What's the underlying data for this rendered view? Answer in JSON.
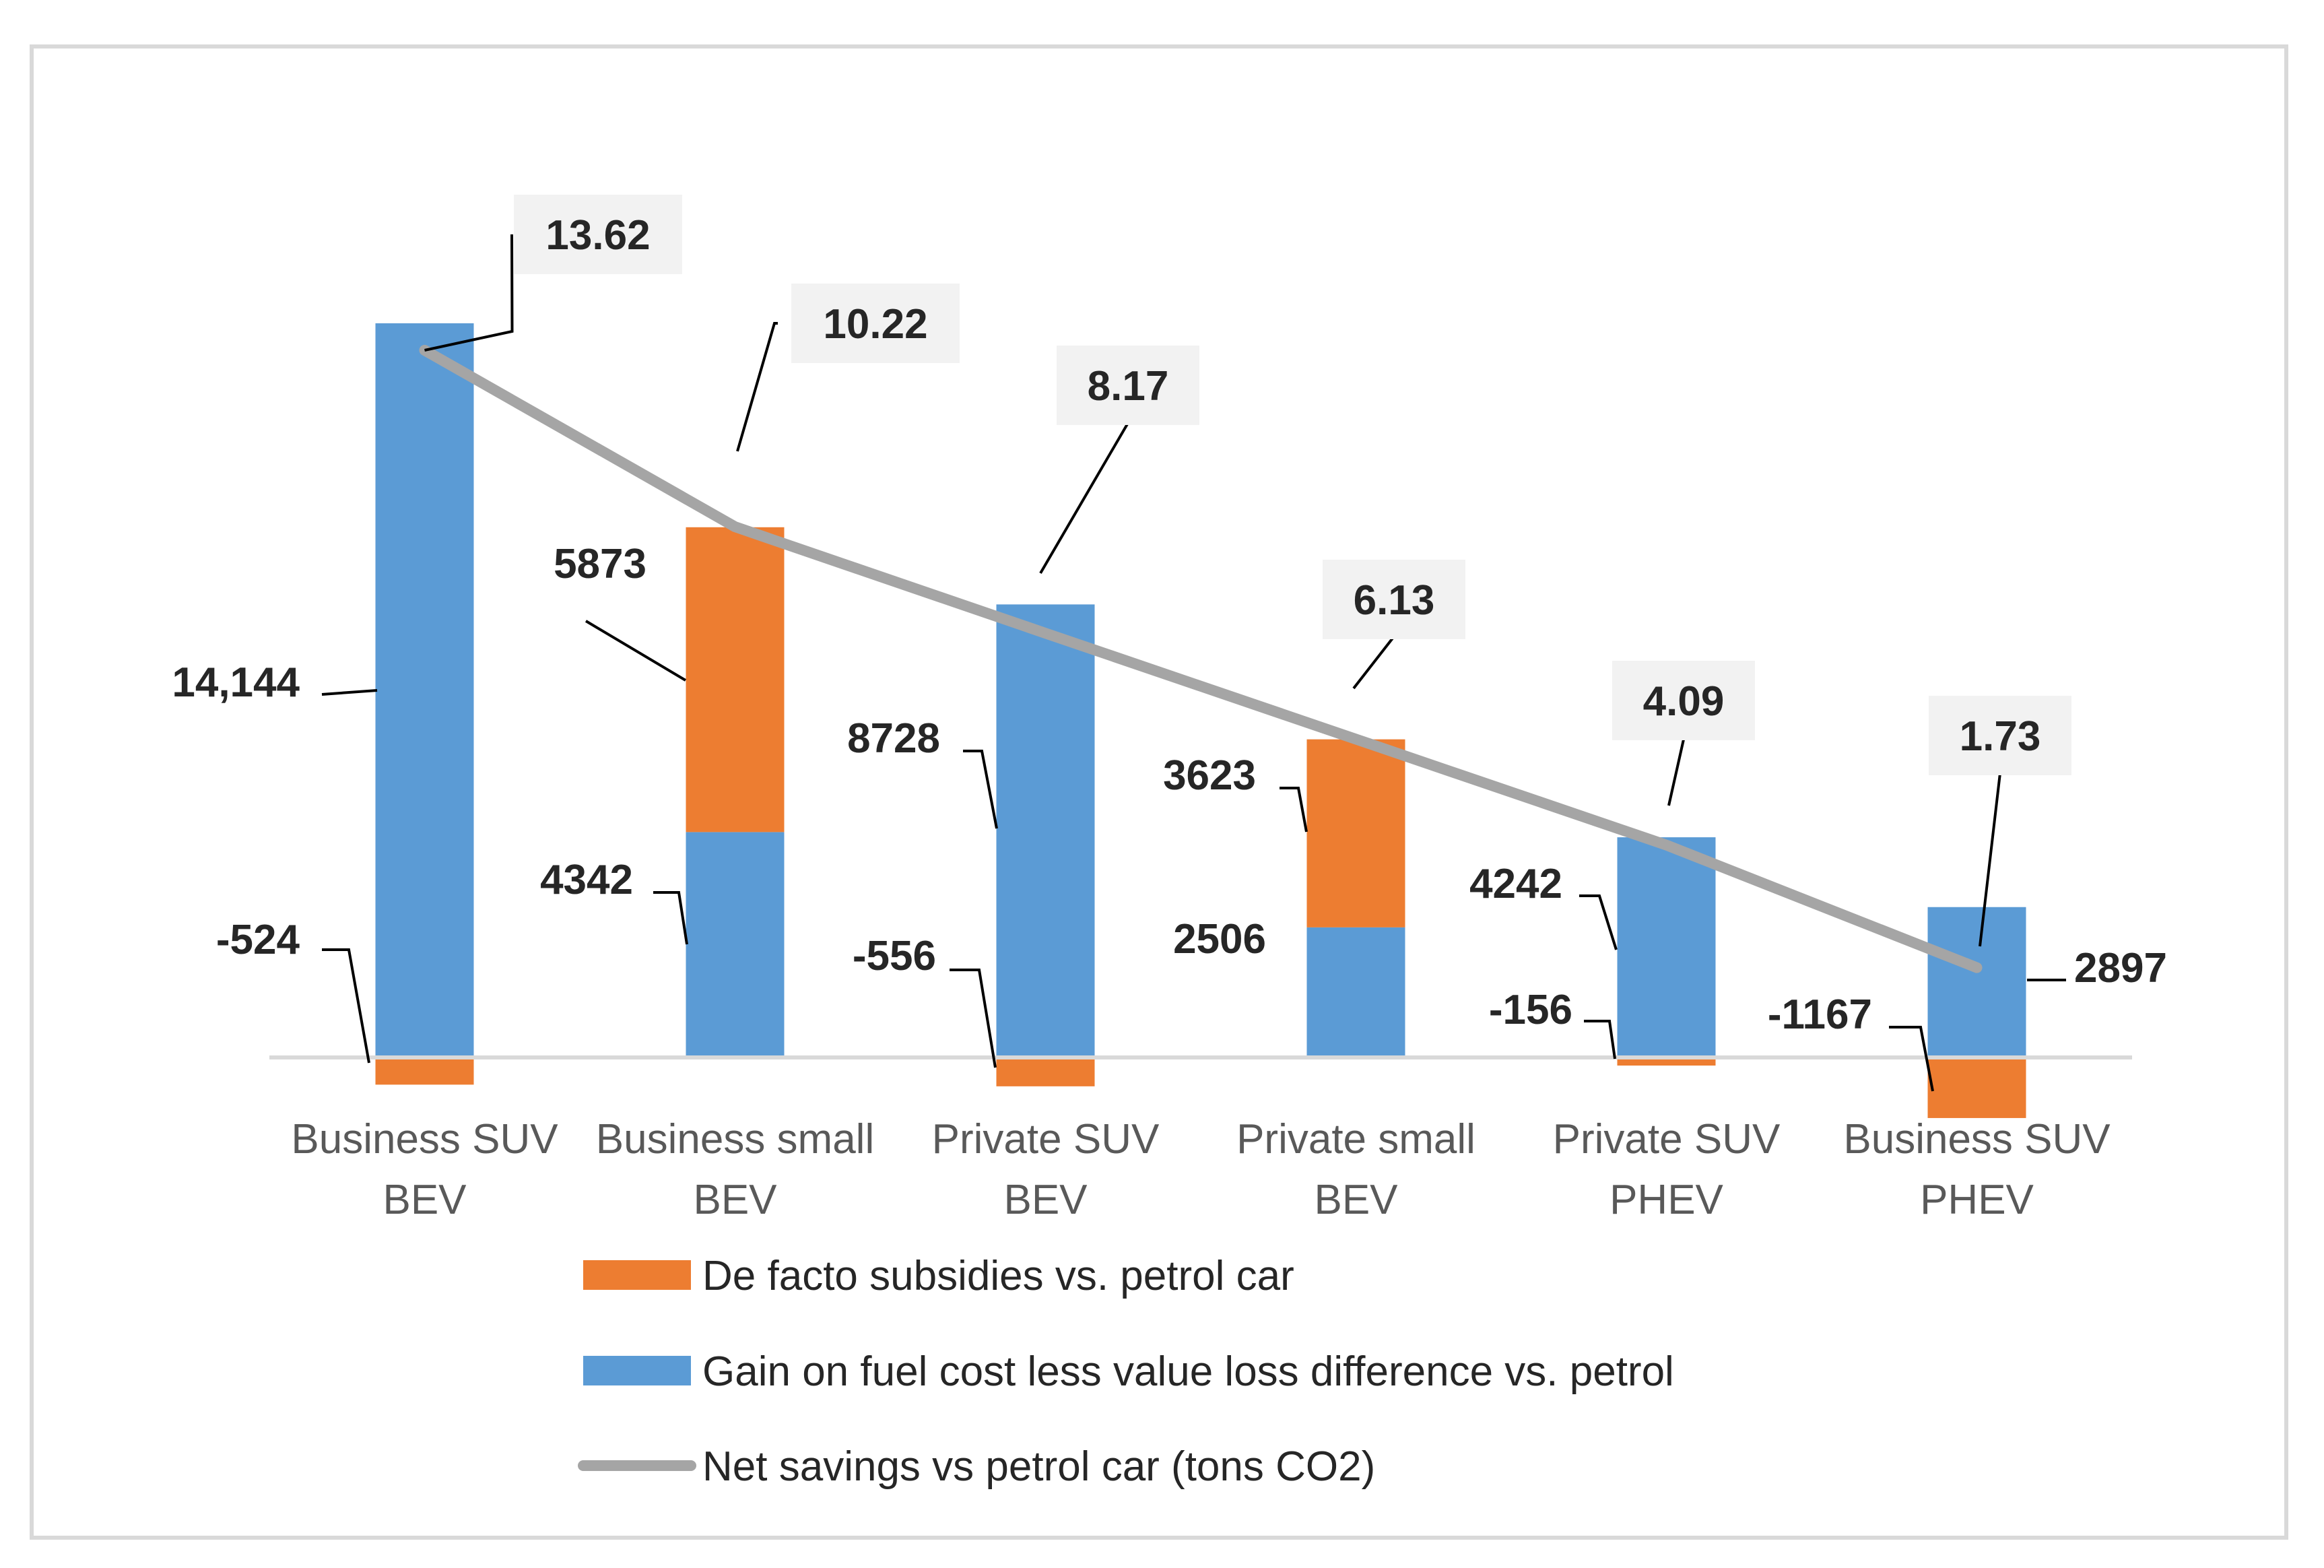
{
  "chart_data": {
    "type": "bar",
    "stacked": true,
    "categories": [
      [
        "Business SUV",
        "BEV"
      ],
      [
        "Business small",
        "BEV"
      ],
      [
        "Private SUV",
        "BEV"
      ],
      [
        "Private small",
        "BEV"
      ],
      [
        "Private SUV",
        "PHEV"
      ],
      [
        "Business SUV",
        "PHEV"
      ]
    ],
    "series": [
      {
        "name": "De facto subsidies vs. petrol car",
        "kind": "bar",
        "color": "#ed7d31",
        "values": [
          -524,
          5873,
          -556,
          3623,
          -156,
          -1167
        ],
        "labels": [
          "-524",
          "5873",
          "-556",
          "3623",
          "-156",
          "-1167"
        ]
      },
      {
        "name": "Gain on fuel cost less value loss difference vs. petrol",
        "kind": "bar",
        "color": "#5b9bd5",
        "values": [
          14144,
          4342,
          8728,
          2506,
          4242,
          2897
        ],
        "labels": [
          "14,144",
          "4342",
          "8728",
          "2506",
          "4242",
          "2897"
        ]
      },
      {
        "name": "Net savings vs petrol car (tons CO2)",
        "kind": "line",
        "axis": "secondary",
        "color": "#a5a5a5",
        "values": [
          13.62,
          10.22,
          8.17,
          6.13,
          4.09,
          1.73
        ],
        "labels": [
          "13.62",
          "10.22",
          "8.17",
          "6.13",
          "4.09",
          "1.73"
        ]
      }
    ],
    "title": "",
    "xlabel": "",
    "ylabel": "",
    "ylim": [
      -3000,
      16000
    ],
    "y2lim": [
      -17.5,
      17.5
    ],
    "grid": false,
    "legend_position": "bottom"
  }
}
